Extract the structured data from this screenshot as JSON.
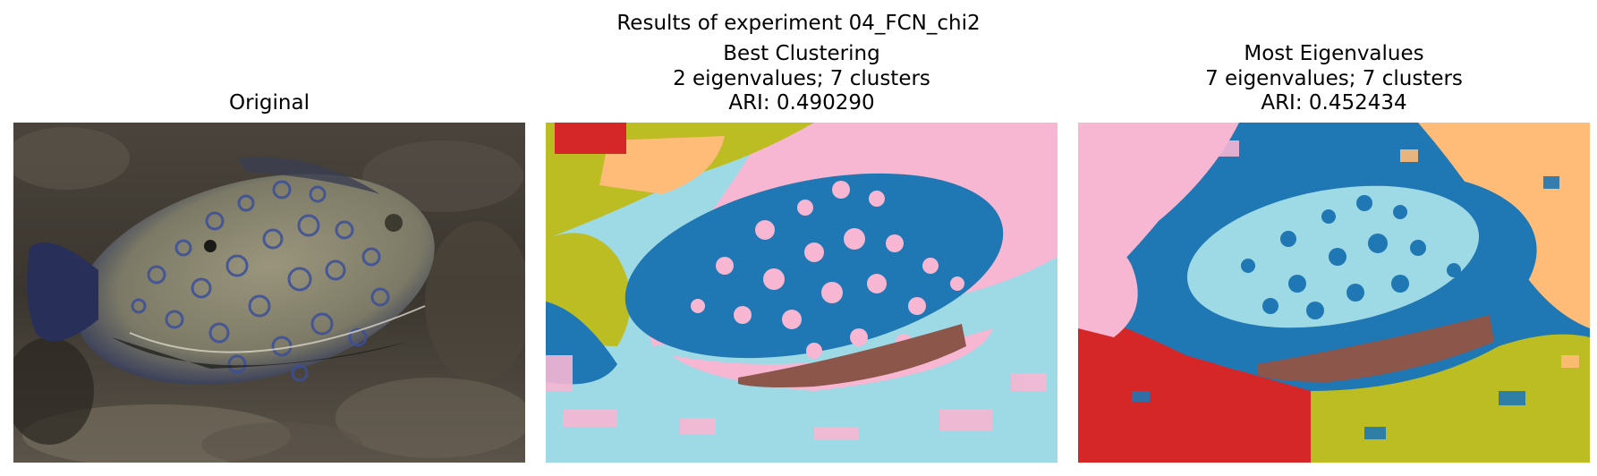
{
  "figure": {
    "title": "Results of experiment 04_FCN_chi2"
  },
  "panels": [
    {
      "id": "original",
      "title_lines": [
        "Original"
      ]
    },
    {
      "id": "best",
      "title_lines": [
        "Best Clustering",
        "2 eigenvalues; 7 clusters",
        "ARI: 0.490290"
      ]
    },
    {
      "id": "most",
      "title_lines": [
        "Most Eigenvalues",
        "7 eigenvalues; 7 clusters",
        "ARI: 0.452434"
      ]
    }
  ],
  "cluster_colors": {
    "blue": "#1f77b4",
    "pink": "#f7b6d2",
    "light_blue": "#9edae5",
    "olive": "#bcbd22",
    "red": "#d62728",
    "orange": "#ffbb78",
    "brown": "#8c564b"
  }
}
